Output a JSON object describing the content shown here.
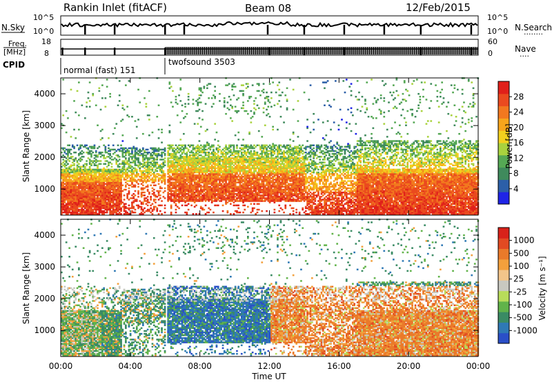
{
  "header": {
    "station": "Rankin Inlet (fitACF)",
    "beam": "Beam 08",
    "date": "12/Feb/2015"
  },
  "noise_panel": {
    "left_label": "N.Sky",
    "right_label": "N.Search",
    "right_dots": "........",
    "tick_top": "10^5",
    "tick_bottom": "10^0",
    "right_tick_top": "10^5",
    "right_tick_bottom": "10^0"
  },
  "freq_panel": {
    "label_top": "Freq.",
    "label_unit": "[MHz]",
    "tick_top": "18",
    "tick_bottom": "8",
    "right_label": "Nave",
    "right_dots": "....",
    "right_tick_top": "60",
    "right_tick_bottom": "0"
  },
  "cpid": {
    "label": "CPID",
    "segments": [
      {
        "name": "normal (fast) 151",
        "start_hour": 0,
        "end_hour": 6
      },
      {
        "name": "twofsound 3503",
        "start_hour": 6,
        "end_hour": 24
      }
    ]
  },
  "colorbars": {
    "power": {
      "title": "Power [dB]",
      "ticks": [
        "4",
        "8",
        "12",
        "16",
        "20",
        "24",
        "28"
      ],
      "colors": [
        "#1f24e6",
        "#2c5fa8",
        "#3f8a5c",
        "#55a854",
        "#a9d23e",
        "#f2d01e",
        "#f7a51c",
        "#f2781f",
        "#ea4a1f",
        "#e0201a"
      ]
    },
    "velocity": {
      "title": "Velocity [m s⁻¹]",
      "ticks": [
        "1000",
        "500",
        "100",
        "25",
        "-25",
        "-100",
        "-500",
        "-1000"
      ],
      "colors": [
        "#2a4fc7",
        "#2f79b5",
        "#3a8b64",
        "#61b34a",
        "#b8dc5a",
        "#c8c8c0",
        "#f3c58a",
        "#f3a03c",
        "#ea7a2a",
        "#e24a22",
        "#d8221a"
      ]
    }
  },
  "chart_data": [
    {
      "type": "heatmap",
      "name": "power",
      "ylabel": "Slant Range [km]",
      "xlabel": "",
      "xlim": [
        0,
        24
      ],
      "ylim": [
        180,
        4500
      ],
      "x_ticks": [
        "00:00",
        "04:00",
        "08:00",
        "12:00",
        "16:00",
        "20:00",
        "00:00"
      ],
      "y_ticks": [
        "1000",
        "2000",
        "3000",
        "4000"
      ],
      "value_range": [
        0,
        30
      ],
      "unit": "dB"
    },
    {
      "type": "heatmap",
      "name": "velocity",
      "ylabel": "Slant Range [km]",
      "xlabel": "Time UT",
      "xlim": [
        0,
        24
      ],
      "ylim": [
        180,
        4500
      ],
      "x_ticks": [
        "00:00",
        "04:00",
        "08:00",
        "12:00",
        "16:00",
        "20:00",
        "00:00"
      ],
      "y_ticks": [
        "1000",
        "2000",
        "3000",
        "4000"
      ],
      "value_range": [
        -1000,
        1000
      ],
      "unit": "m s-1"
    }
  ]
}
